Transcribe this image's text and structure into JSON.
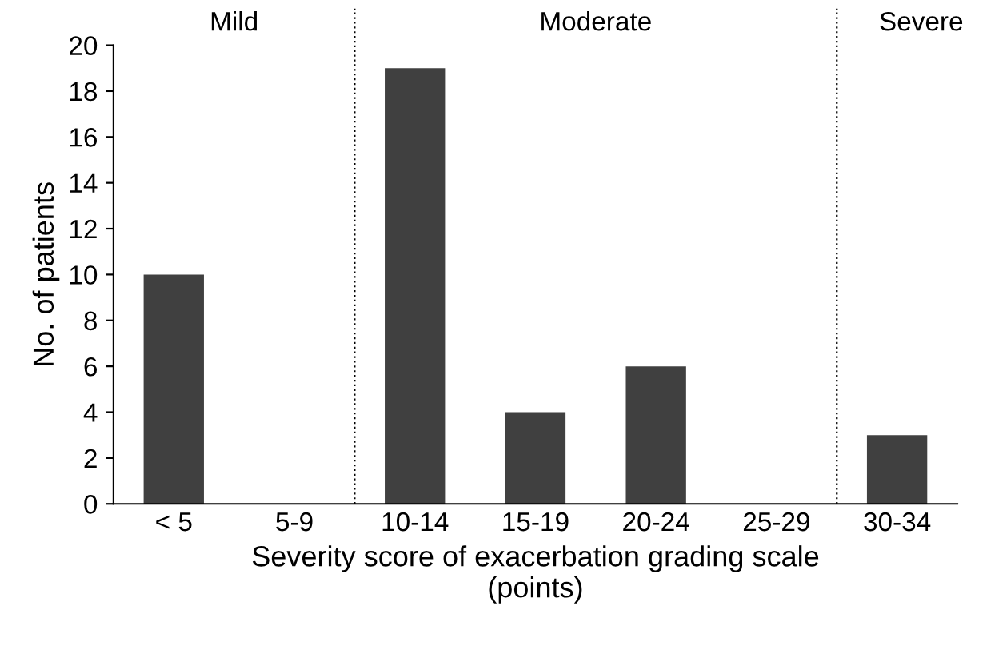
{
  "chart_data": {
    "type": "bar",
    "xlabel": "Severity score of exacerbation grading scale\n(points)",
    "ylabel": "No. of patients",
    "categories": [
      "< 5",
      "5-9",
      "10-14",
      "15-19",
      "20-24",
      "25-29",
      "30-34"
    ],
    "values": [
      10,
      0,
      19,
      4,
      6,
      0,
      3
    ],
    "color": "#404040",
    "ylim": [
      0,
      20
    ],
    "yticks": [
      0,
      2,
      4,
      6,
      8,
      10,
      12,
      14,
      16,
      18,
      20
    ],
    "grid": false,
    "legend": false,
    "annotations": [
      "Mild",
      "Moderate",
      "Severe"
    ]
  }
}
